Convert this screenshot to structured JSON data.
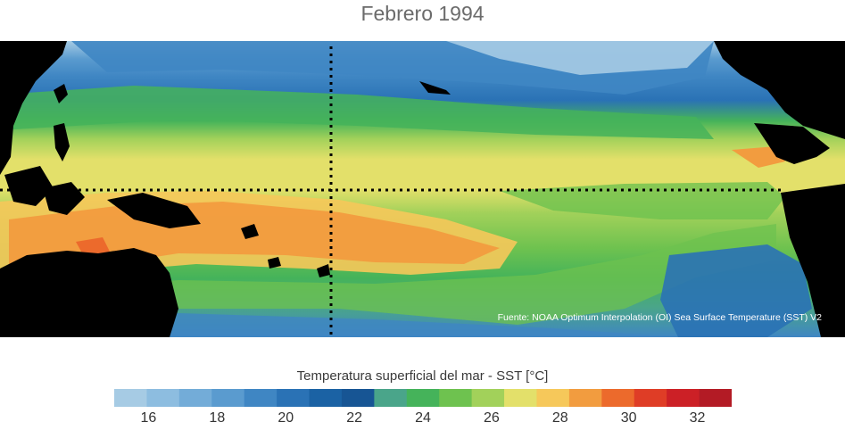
{
  "title": "Febrero 1994",
  "source_note": "Fuente: NOAA Optimum Interpolation (OI) Sea Surface Temperature (SST) V2",
  "colorbar": {
    "label": "Temperatura superficial del mar - SST  [°C]",
    "min": 15,
    "max": 33,
    "colors": [
      "#a6cbe4",
      "#8dbde0",
      "#73acd8",
      "#5a9bcf",
      "#3f86c3",
      "#2a72b5",
      "#1b62a4",
      "#175594",
      "#4aa58a",
      "#45b35a",
      "#6ec24f",
      "#a2d15a",
      "#e3e06a",
      "#f6c85a",
      "#f29c3f",
      "#ec6a2c",
      "#df3d26",
      "#cc2026",
      "#b31b25"
    ],
    "tick_labels": [
      "16",
      "18",
      "20",
      "22",
      "24",
      "26",
      "28",
      "30",
      "32"
    ]
  },
  "map": {
    "sst_bands": [
      {
        "label": "north-cold",
        "temp": "18",
        "color": "#73acd8"
      },
      {
        "label": "north-mid",
        "temp": "22",
        "color": "#2a72b5"
      },
      {
        "label": "north-green",
        "temp": "24",
        "color": "#45b35a"
      },
      {
        "label": "subtropical",
        "temp": "26",
        "color": "#a2d15a"
      },
      {
        "label": "tropical",
        "temp": "27",
        "color": "#e3e06a"
      },
      {
        "label": "warm-pool",
        "temp": "29",
        "color": "#f29c3f"
      },
      {
        "label": "south-green",
        "temp": "24",
        "color": "#45b35a"
      },
      {
        "label": "south-cold",
        "temp": "20",
        "color": "#3f86c3"
      }
    ],
    "land_color": "#000000",
    "grid_lines": "dotted"
  }
}
